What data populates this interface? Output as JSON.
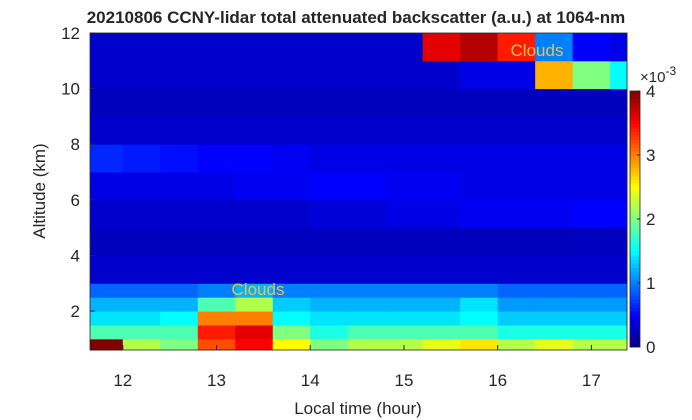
{
  "chart_data": {
    "type": "heatmap",
    "title": "20210806 CCNY-lidar total attenuated backscatter (a.u.) at 1064-nm",
    "x_label": "Local time (hour)",
    "y_label": "Altitude (km)",
    "xlim": [
      11.65,
      17.38
    ],
    "ylim": [
      0.6,
      12
    ],
    "xticks": [
      12,
      13,
      14,
      15,
      16,
      17
    ],
    "yticks": [
      2,
      4,
      6,
      8,
      10,
      12
    ],
    "x_edges": [
      11.65,
      12.0,
      12.4,
      12.8,
      13.2,
      13.6,
      14.0,
      14.4,
      14.8,
      15.2,
      15.6,
      16.0,
      16.4,
      16.8,
      17.2,
      17.38
    ],
    "y_edges": [
      0.6,
      1,
      1.5,
      2,
      2.5,
      3,
      4,
      5,
      6,
      7,
      8,
      9,
      10,
      11,
      12
    ],
    "z": [
      [
        4,
        2.2,
        2.0,
        3.2,
        3.5,
        2.5,
        2.0,
        2.2,
        2.2,
        2.4,
        2.6,
        2.2,
        2.4,
        2.2,
        2.2
      ],
      [
        1.8,
        1.8,
        1.8,
        3.4,
        3.6,
        2.0,
        1.6,
        1.8,
        1.8,
        1.8,
        1.8,
        1.6,
        1.6,
        1.6,
        1.6
      ],
      [
        1.4,
        1.4,
        1.5,
        3.0,
        3.0,
        1.5,
        1.4,
        1.4,
        1.4,
        1.4,
        1.5,
        1.3,
        1.3,
        1.3,
        1.3
      ],
      [
        1.2,
        1.2,
        1.2,
        1.8,
        2.2,
        1.3,
        1.2,
        1.2,
        1.2,
        1.2,
        1.4,
        1.1,
        1.1,
        1.1,
        1.1
      ],
      [
        0.9,
        0.9,
        0.9,
        1.0,
        1.2,
        1.0,
        1.0,
        1.0,
        1.0,
        1.0,
        1.0,
        0.9,
        0.9,
        0.9,
        0.9
      ],
      [
        0.3,
        0.3,
        0.3,
        0.3,
        0.3,
        0.3,
        0.3,
        0.3,
        0.3,
        0.3,
        0.3,
        0.3,
        0.3,
        0.3,
        0.3
      ],
      [
        0.25,
        0.25,
        0.25,
        0.25,
        0.25,
        0.25,
        0.25,
        0.25,
        0.25,
        0.25,
        0.25,
        0.25,
        0.25,
        0.25,
        0.25
      ],
      [
        0.3,
        0.3,
        0.3,
        0.3,
        0.3,
        0.3,
        0.35,
        0.35,
        0.4,
        0.4,
        0.45,
        0.45,
        0.45,
        0.5,
        0.5
      ],
      [
        0.4,
        0.4,
        0.4,
        0.4,
        0.45,
        0.45,
        0.5,
        0.5,
        0.45,
        0.45,
        0.4,
        0.4,
        0.4,
        0.4,
        0.4
      ],
      [
        0.65,
        0.6,
        0.55,
        0.5,
        0.5,
        0.45,
        0.4,
        0.4,
        0.4,
        0.4,
        0.4,
        0.4,
        0.4,
        0.4,
        0.4
      ],
      [
        0.3,
        0.3,
        0.3,
        0.3,
        0.3,
        0.3,
        0.3,
        0.3,
        0.3,
        0.3,
        0.3,
        0.3,
        0.3,
        0.3,
        0.3
      ],
      [
        0.25,
        0.25,
        0.25,
        0.25,
        0.25,
        0.25,
        0.25,
        0.25,
        0.25,
        0.25,
        0.25,
        0.25,
        0.25,
        0.25,
        0.25
      ],
      [
        0.3,
        0.3,
        0.3,
        0.3,
        0.3,
        0.3,
        0.3,
        0.3,
        0.3,
        0.3,
        0.4,
        0.4,
        2.8,
        2.0,
        1.5
      ],
      [
        0.3,
        0.3,
        0.3,
        0.3,
        0.3,
        0.3,
        0.3,
        0.3,
        0.3,
        3.6,
        3.8,
        3.4,
        1.0,
        0.5,
        0.4
      ]
    ],
    "colormap": "jet",
    "clim": [
      0,
      4
    ],
    "colorbar_ticks": [
      0,
      1,
      2,
      3,
      4
    ],
    "colorbar_scale": {
      "base": "×10",
      "exponent": "-3"
    },
    "annotations": [
      "Clouds",
      "Clouds"
    ]
  }
}
